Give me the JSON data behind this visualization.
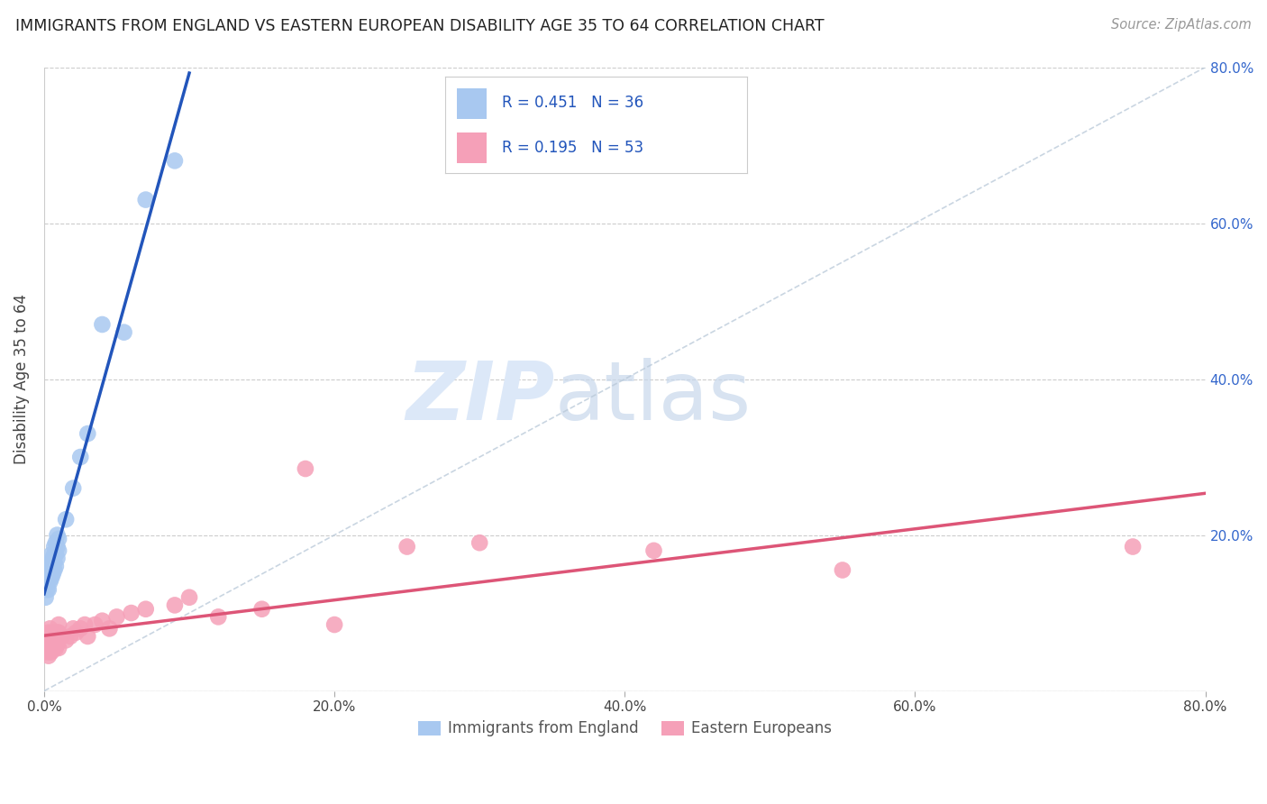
{
  "title": "IMMIGRANTS FROM ENGLAND VS EASTERN EUROPEAN DISABILITY AGE 35 TO 64 CORRELATION CHART",
  "source": "Source: ZipAtlas.com",
  "ylabel": "Disability Age 35 to 64",
  "xlim": [
    0,
    0.8
  ],
  "ylim": [
    0,
    0.8
  ],
  "england_R": 0.451,
  "england_N": 36,
  "eastern_R": 0.195,
  "eastern_N": 53,
  "england_color": "#a8c8f0",
  "eastern_color": "#f5a0b8",
  "england_line_color": "#2255bb",
  "eastern_line_color": "#dd5577",
  "watermark_color": "#dce8f8",
  "legend_text_color": "#2255bb",
  "england_label": "Immigrants from England",
  "eastern_label": "Eastern Europeans",
  "england_x": [
    0.001,
    0.002,
    0.002,
    0.003,
    0.003,
    0.003,
    0.004,
    0.004,
    0.004,
    0.005,
    0.005,
    0.005,
    0.005,
    0.006,
    0.006,
    0.006,
    0.007,
    0.007,
    0.007,
    0.007,
    0.008,
    0.008,
    0.008,
    0.009,
    0.009,
    0.009,
    0.01,
    0.01,
    0.015,
    0.02,
    0.025,
    0.03,
    0.04,
    0.055,
    0.07,
    0.09
  ],
  "england_y": [
    0.12,
    0.13,
    0.14,
    0.13,
    0.145,
    0.155,
    0.14,
    0.15,
    0.16,
    0.145,
    0.155,
    0.165,
    0.175,
    0.15,
    0.16,
    0.17,
    0.155,
    0.165,
    0.175,
    0.185,
    0.16,
    0.175,
    0.19,
    0.17,
    0.185,
    0.2,
    0.18,
    0.195,
    0.22,
    0.26,
    0.3,
    0.33,
    0.47,
    0.46,
    0.63,
    0.68
  ],
  "eastern_x": [
    0.001,
    0.001,
    0.002,
    0.002,
    0.003,
    0.003,
    0.003,
    0.003,
    0.004,
    0.004,
    0.004,
    0.004,
    0.005,
    0.005,
    0.005,
    0.006,
    0.006,
    0.006,
    0.007,
    0.007,
    0.008,
    0.008,
    0.009,
    0.009,
    0.01,
    0.01,
    0.01,
    0.01,
    0.012,
    0.015,
    0.018,
    0.02,
    0.022,
    0.025,
    0.028,
    0.03,
    0.035,
    0.04,
    0.045,
    0.05,
    0.06,
    0.07,
    0.09,
    0.1,
    0.12,
    0.15,
    0.18,
    0.2,
    0.25,
    0.3,
    0.42,
    0.55,
    0.75
  ],
  "eastern_y": [
    0.055,
    0.065,
    0.05,
    0.06,
    0.045,
    0.055,
    0.065,
    0.075,
    0.05,
    0.06,
    0.07,
    0.08,
    0.05,
    0.06,
    0.07,
    0.055,
    0.065,
    0.075,
    0.06,
    0.07,
    0.055,
    0.065,
    0.06,
    0.075,
    0.055,
    0.065,
    0.075,
    0.085,
    0.07,
    0.065,
    0.07,
    0.08,
    0.075,
    0.08,
    0.085,
    0.07,
    0.085,
    0.09,
    0.08,
    0.095,
    0.1,
    0.105,
    0.11,
    0.12,
    0.095,
    0.105,
    0.285,
    0.085,
    0.185,
    0.19,
    0.18,
    0.155,
    0.185
  ]
}
